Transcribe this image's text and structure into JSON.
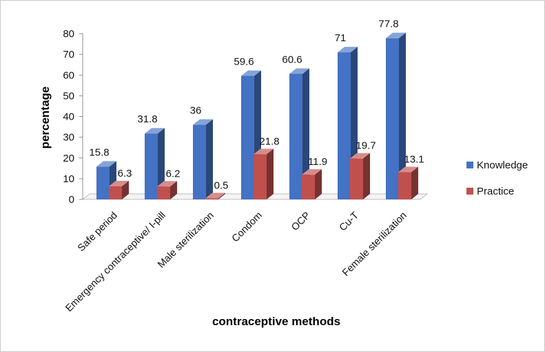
{
  "chart_data": {
    "type": "bar",
    "title": "",
    "xlabel": "contraceptive methods",
    "ylabel": "percentage",
    "ylim": [
      0,
      80
    ],
    "yticks": [
      "0",
      "10",
      "20",
      "30",
      "40",
      "50",
      "60",
      "70",
      "80"
    ],
    "grid": false,
    "legend_position": "right",
    "categories": [
      "Safe period",
      "Emergency contraceptive/ I-pill",
      "Male sterilization",
      "Condom",
      "OCP",
      "Cu-T",
      "Female sterilization"
    ],
    "series": [
      {
        "name": "Knowledge",
        "color": "#4472c4",
        "values": [
          15.8,
          31.8,
          36,
          59.6,
          60.6,
          71,
          77.8
        ],
        "labels": [
          "15.8",
          "31.8",
          "36",
          "59.6",
          "60.6",
          "71",
          "77.8"
        ]
      },
      {
        "name": "Practice",
        "color": "#c0504d",
        "values": [
          6.3,
          6.2,
          0.5,
          21.8,
          11.9,
          19.7,
          13.1
        ],
        "labels": [
          "6.3",
          "6.2",
          "0.5",
          "21.8",
          "11.9",
          "19.7",
          "13.1"
        ]
      }
    ]
  }
}
